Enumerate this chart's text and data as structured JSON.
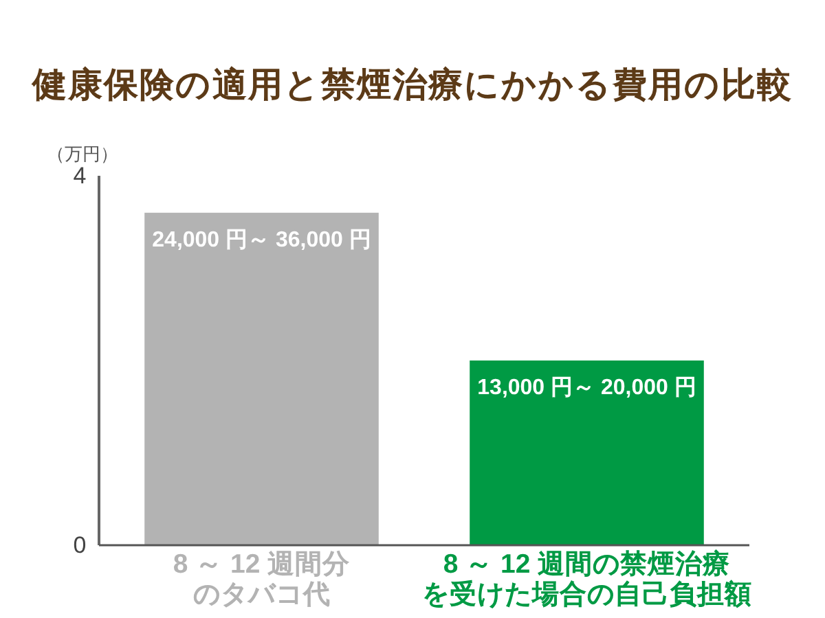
{
  "chart_data": {
    "type": "bar",
    "title": "健康保険の適用と禁煙治療にかかる費用の比較",
    "ylabel": "（万円）",
    "categories": [
      "8 ～ 12 週間分のタバコ代",
      "8 ～ 12 週間の禁煙治療を受けた場合の自己負担額"
    ],
    "values": [
      3.6,
      2.0
    ],
    "colors": [
      "#b3b3b3",
      "#009a44"
    ],
    "annotations": [
      {
        "text": "24,000 円～ 36,000 円",
        "x": "8 ～ 12 週間分のタバコ代",
        "y": 3.6
      },
      {
        "text": "13,000 円～ 20,000 円",
        "x": "8 ～ 12 週間の禁煙治療を受けた場合の自己負担額",
        "y": 2.0
      }
    ],
    "ylim": [
      0,
      4
    ],
    "yticks": [
      0,
      4
    ]
  }
}
